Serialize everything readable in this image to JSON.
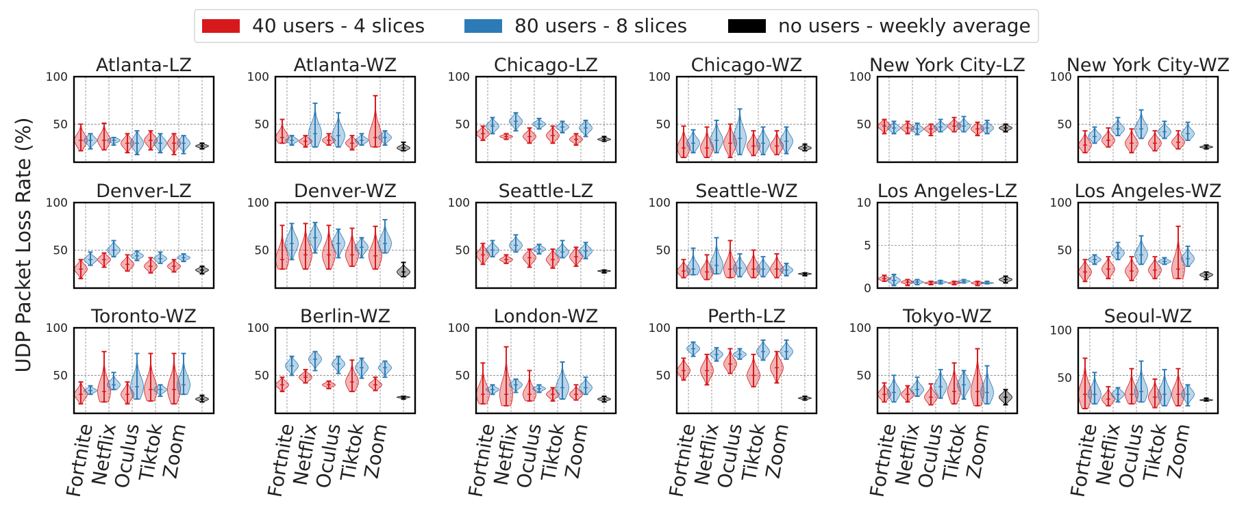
{
  "chart_data": {
    "type": "violin",
    "ylabel": "UDP Packet Loss Rate (%)",
    "legend_placement": "top-center",
    "grid": true,
    "categories": [
      "Fortnite",
      "Netflix",
      "Oculus",
      "Tiktok",
      "Zoom"
    ],
    "legend": [
      {
        "key": "red",
        "label": "40 users - 4 slices",
        "color": "#d7191c"
      },
      {
        "key": "blue",
        "label": "80 users - 8 slices",
        "color": "#2c7bb6"
      },
      {
        "key": "black",
        "label": "no users - weekly average",
        "color": "#000000"
      }
    ],
    "panels": [
      {
        "title": "Atlanta-LZ",
        "ylim": [
          10,
          100
        ],
        "yticks": [
          50,
          100
        ],
        "red": [
          [
            22,
            33,
            50
          ],
          [
            23,
            33,
            51
          ],
          [
            20,
            30,
            40
          ],
          [
            23,
            33,
            43
          ],
          [
            18,
            30,
            40
          ]
        ],
        "blue": [
          [
            24,
            33,
            40
          ],
          [
            28,
            33,
            36
          ],
          [
            18,
            30,
            43
          ],
          [
            20,
            30,
            40
          ],
          [
            19,
            30,
            38
          ]
        ],
        "black": [
          24,
          27,
          30
        ]
      },
      {
        "title": "Atlanta-WZ",
        "ylim": [
          10,
          100
        ],
        "yticks": [
          50,
          100
        ],
        "red": [
          [
            30,
            36,
            55
          ],
          [
            26,
            32,
            38
          ],
          [
            28,
            33,
            40
          ],
          [
            23,
            30,
            38
          ],
          [
            26,
            36,
            80
          ]
        ],
        "blue": [
          [
            28,
            33,
            38
          ],
          [
            26,
            40,
            72
          ],
          [
            26,
            38,
            62
          ],
          [
            28,
            33,
            40
          ],
          [
            28,
            36,
            43
          ]
        ],
        "black": [
          22,
          25,
          31
        ]
      },
      {
        "title": "Chicago-LZ",
        "ylim": [
          10,
          100
        ],
        "yticks": [
          50,
          100
        ],
        "red": [
          [
            33,
            40,
            48
          ],
          [
            34,
            37,
            40
          ],
          [
            30,
            37,
            46
          ],
          [
            30,
            38,
            48
          ],
          [
            28,
            34,
            40
          ]
        ],
        "blue": [
          [
            40,
            48,
            57
          ],
          [
            43,
            53,
            62
          ],
          [
            45,
            50,
            56
          ],
          [
            41,
            47,
            53
          ],
          [
            37,
            46,
            54
          ]
        ],
        "black": [
          32,
          34,
          37
        ]
      },
      {
        "title": "Chicago-WZ",
        "ylim": [
          10,
          100
        ],
        "yticks": [
          50,
          100
        ],
        "red": [
          [
            15,
            25,
            48
          ],
          [
            15,
            25,
            47
          ],
          [
            15,
            30,
            50
          ],
          [
            17,
            27,
            43
          ],
          [
            18,
            27,
            43
          ]
        ],
        "blue": [
          [
            20,
            30,
            44
          ],
          [
            20,
            33,
            54
          ],
          [
            18,
            35,
            66
          ],
          [
            18,
            30,
            47
          ],
          [
            19,
            32,
            47
          ]
        ],
        "black": [
          22,
          25,
          29
        ]
      },
      {
        "title": "New York City-LZ",
        "ylim": [
          10,
          100
        ],
        "yticks": [
          50,
          100
        ],
        "red": [
          [
            40,
            48,
            55
          ],
          [
            40,
            46,
            53
          ],
          [
            38,
            45,
            50
          ],
          [
            42,
            48,
            57
          ],
          [
            38,
            45,
            52
          ]
        ],
        "blue": [
          [
            40,
            46,
            53
          ],
          [
            39,
            45,
            51
          ],
          [
            42,
            47,
            55
          ],
          [
            42,
            48,
            58
          ],
          [
            40,
            46,
            54
          ]
        ],
        "black": [
          42,
          46,
          50
        ]
      },
      {
        "title": "New York City-WZ",
        "ylim": [
          10,
          100
        ],
        "yticks": [
          50,
          100
        ],
        "red": [
          [
            20,
            28,
            43
          ],
          [
            26,
            33,
            46
          ],
          [
            20,
            30,
            45
          ],
          [
            22,
            30,
            43
          ],
          [
            24,
            31,
            43
          ]
        ],
        "blue": [
          [
            30,
            37,
            47
          ],
          [
            38,
            45,
            57
          ],
          [
            35,
            45,
            65
          ],
          [
            35,
            42,
            53
          ],
          [
            33,
            40,
            52
          ]
        ],
        "black": [
          24,
          26,
          28
        ]
      }
    ],
    "panels_row2": [
      {
        "title": "Denver-LZ",
        "ylim": [
          10,
          100
        ],
        "yticks": [
          50,
          100
        ],
        "red": [
          [
            20,
            30,
            40
          ],
          [
            32,
            40,
            47
          ],
          [
            28,
            35,
            45
          ],
          [
            26,
            33,
            42
          ],
          [
            27,
            33,
            40
          ]
        ],
        "blue": [
          [
            34,
            40,
            48
          ],
          [
            43,
            50,
            60
          ],
          [
            39,
            44,
            49
          ],
          [
            36,
            41,
            48
          ],
          [
            38,
            42,
            46
          ]
        ],
        "black": [
          25,
          29,
          33
        ]
      },
      {
        "title": "Denver-WZ",
        "ylim": [
          10,
          100
        ],
        "yticks": [
          50,
          100
        ],
        "red": [
          [
            30,
            40,
            76
          ],
          [
            30,
            45,
            78
          ],
          [
            30,
            45,
            76
          ],
          [
            33,
            45,
            73
          ],
          [
            30,
            44,
            75
          ]
        ],
        "blue": [
          [
            40,
            57,
            78
          ],
          [
            47,
            63,
            79
          ],
          [
            42,
            57,
            72
          ],
          [
            42,
            53,
            63
          ],
          [
            47,
            57,
            82
          ]
        ],
        "black": [
          22,
          27,
          37
        ]
      },
      {
        "title": "Seattle-LZ",
        "ylim": [
          10,
          100
        ],
        "yticks": [
          50,
          100
        ],
        "red": [
          [
            35,
            45,
            57
          ],
          [
            36,
            40,
            45
          ],
          [
            32,
            42,
            51
          ],
          [
            31,
            40,
            51
          ],
          [
            33,
            43,
            53
          ]
        ],
        "blue": [
          [
            43,
            50,
            60
          ],
          [
            48,
            55,
            66
          ],
          [
            46,
            51,
            56
          ],
          [
            42,
            48,
            60
          ],
          [
            41,
            49,
            58
          ]
        ],
        "black": [
          26,
          28,
          29
        ]
      },
      {
        "title": "Seattle-WZ",
        "ylim": [
          10,
          100
        ],
        "yticks": [
          50,
          100
        ],
        "red": [
          [
            21,
            28,
            40
          ],
          [
            19,
            27,
            45
          ],
          [
            21,
            30,
            60
          ],
          [
            21,
            30,
            50
          ],
          [
            21,
            30,
            46
          ]
        ],
        "blue": [
          [
            24,
            30,
            52
          ],
          [
            25,
            34,
            63
          ],
          [
            22,
            31,
            46
          ],
          [
            22,
            30,
            43
          ],
          [
            23,
            29,
            36
          ]
        ],
        "black": [
          23,
          25,
          26
        ]
      },
      {
        "title": "Los Angeles-LZ",
        "ylim": [
          0,
          10
        ],
        "yticks": [
          0,
          5,
          10
        ],
        "red": [
          [
            0.8,
            1.1,
            1.5
          ],
          [
            0.3,
            0.7,
            1.0
          ],
          [
            0.4,
            0.6,
            0.8
          ],
          [
            0.4,
            0.6,
            0.8
          ],
          [
            0.3,
            0.6,
            0.8
          ]
        ],
        "blue": [
          [
            0.3,
            0.9,
            1.6
          ],
          [
            0.4,
            0.7,
            1.0
          ],
          [
            0.5,
            0.7,
            0.9
          ],
          [
            0.6,
            0.8,
            1.0
          ],
          [
            0.5,
            0.6,
            0.8
          ]
        ],
        "black": [
          0.6,
          1.0,
          1.4
        ]
      },
      {
        "title": "Los Angeles-WZ",
        "ylim": [
          10,
          100
        ],
        "yticks": [
          50,
          100
        ],
        "red": [
          [
            17,
            27,
            40
          ],
          [
            20,
            30,
            43
          ],
          [
            18,
            28,
            43
          ],
          [
            20,
            29,
            43
          ],
          [
            20,
            30,
            75
          ]
        ],
        "blue": [
          [
            35,
            40,
            45
          ],
          [
            40,
            47,
            58
          ],
          [
            35,
            45,
            65
          ],
          [
            35,
            38,
            42
          ],
          [
            33,
            41,
            54
          ]
        ],
        "black": [
          19,
          24,
          27
        ]
      }
    ],
    "panels_row3": [
      {
        "title": "Toronto-WZ",
        "ylim": [
          10,
          100
        ],
        "yticks": [
          50,
          100
        ],
        "red": [
          [
            20,
            30,
            43
          ],
          [
            22,
            33,
            75
          ],
          [
            20,
            30,
            43
          ],
          [
            23,
            35,
            73
          ],
          [
            20,
            35,
            73
          ]
        ],
        "blue": [
          [
            30,
            34,
            39
          ],
          [
            35,
            40,
            53
          ],
          [
            25,
            38,
            73
          ],
          [
            28,
            35,
            40
          ],
          [
            30,
            40,
            73
          ]
        ],
        "black": [
          22,
          25,
          29
        ]
      },
      {
        "title": "Berlin-WZ",
        "ylim": [
          10,
          100
        ],
        "yticks": [
          50,
          100
        ],
        "red": [
          [
            33,
            40,
            48
          ],
          [
            42,
            48,
            56
          ],
          [
            36,
            40,
            44
          ],
          [
            33,
            43,
            66
          ],
          [
            34,
            40,
            48
          ]
        ],
        "blue": [
          [
            50,
            60,
            70
          ],
          [
            55,
            67,
            75
          ],
          [
            52,
            62,
            70
          ],
          [
            47,
            58,
            68
          ],
          [
            48,
            58,
            65
          ]
        ],
        "black": [
          25,
          27,
          28
        ]
      },
      {
        "title": "London-WZ",
        "ylim": [
          10,
          100
        ],
        "yticks": [
          50,
          100
        ],
        "red": [
          [
            20,
            30,
            63
          ],
          [
            18,
            30,
            80
          ],
          [
            23,
            30,
            55
          ],
          [
            23,
            30,
            37
          ],
          [
            24,
            30,
            40
          ]
        ],
        "blue": [
          [
            30,
            35,
            40
          ],
          [
            32,
            40,
            46
          ],
          [
            32,
            36,
            40
          ],
          [
            25,
            37,
            64
          ],
          [
            30,
            37,
            48
          ]
        ],
        "black": [
          22,
          25,
          28
        ]
      },
      {
        "title": "Perth-LZ",
        "ylim": [
          10,
          100
        ],
        "yticks": [
          50,
          100
        ],
        "red": [
          [
            45,
            55,
            68
          ],
          [
            40,
            55,
            72
          ],
          [
            52,
            62,
            78
          ],
          [
            38,
            50,
            72
          ],
          [
            42,
            58,
            75
          ]
        ],
        "blue": [
          [
            70,
            78,
            85
          ],
          [
            65,
            72,
            79
          ],
          [
            67,
            72,
            78
          ],
          [
            66,
            75,
            87
          ],
          [
            67,
            75,
            87
          ]
        ],
        "black": [
          24,
          26,
          28
        ]
      },
      {
        "title": "Tokyo-WZ",
        "ylim": [
          10,
          100
        ],
        "yticks": [
          50,
          100
        ],
        "red": [
          [
            22,
            30,
            42
          ],
          [
            22,
            30,
            39
          ],
          [
            19,
            27,
            41
          ],
          [
            20,
            33,
            63
          ],
          [
            18,
            33,
            78
          ]
        ],
        "blue": [
          [
            22,
            32,
            50
          ],
          [
            28,
            35,
            48
          ],
          [
            26,
            38,
            56
          ],
          [
            25,
            40,
            55
          ],
          [
            20,
            32,
            60
          ]
        ],
        "black": [
          19,
          27,
          35
        ]
      },
      {
        "title": "Seoul-WZ",
        "ylim": [
          10,
          100
        ],
        "yticks": [
          50,
          100
        ],
        "red": [
          [
            15,
            30,
            68
          ],
          [
            18,
            25,
            38
          ],
          [
            20,
            30,
            57
          ],
          [
            16,
            27,
            46
          ],
          [
            18,
            30,
            57
          ]
        ],
        "blue": [
          [
            20,
            30,
            53
          ],
          [
            22,
            30,
            37
          ],
          [
            22,
            33,
            65
          ],
          [
            18,
            30,
            56
          ],
          [
            18,
            30,
            40
          ]
        ],
        "black": [
          23,
          24,
          26
        ]
      }
    ]
  }
}
